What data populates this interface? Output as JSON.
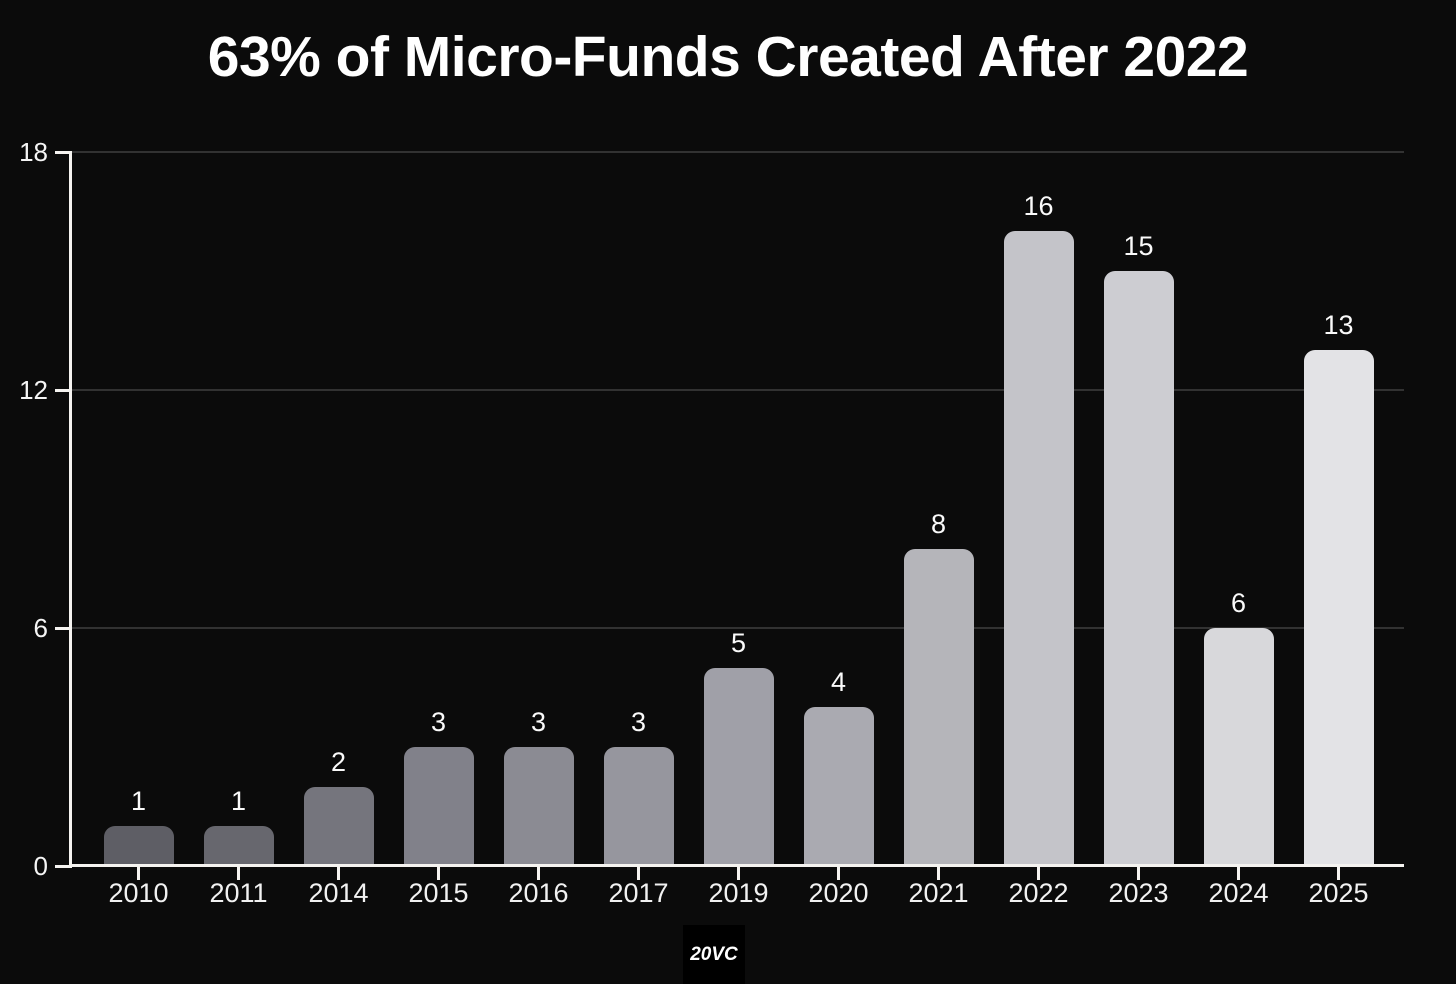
{
  "title": "63% of Micro-Funds Created After 2022",
  "chart_data": {
    "type": "bar",
    "title": "63% of Micro-Funds Created After 2022",
    "categories": [
      "2010",
      "2011",
      "2014",
      "2015",
      "2016",
      "2017",
      "2019",
      "2020",
      "2021",
      "2022",
      "2023",
      "2024",
      "2025"
    ],
    "values": [
      1,
      1,
      2,
      3,
      3,
      3,
      5,
      4,
      8,
      16,
      15,
      6,
      13
    ],
    "bar_colors": [
      "#5e5e65",
      "#67676e",
      "#75757d",
      "#81818a",
      "#8b8b93",
      "#96969e",
      "#a0a0a8",
      "#aaaab1",
      "#b5b5ba",
      "#c4c4c9",
      "#cdcdd2",
      "#d8d8db",
      "#e3e3e6"
    ],
    "xlabel": "",
    "ylabel": "",
    "ylim": [
      0,
      18
    ],
    "yticks": [
      0,
      6,
      12,
      18
    ],
    "grid": "horizontal",
    "value_labels": true,
    "legend": "none"
  },
  "colors": {
    "background": "#0b0b0b",
    "axis": "#f5f3f0",
    "gridline": "#323232",
    "label_text": "#f5f5f5",
    "logo_background": "#000000"
  },
  "branding": {
    "logo_text": "20VC"
  }
}
